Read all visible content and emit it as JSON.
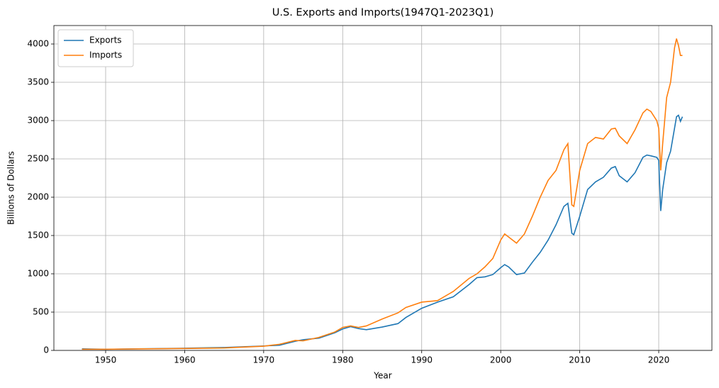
{
  "chart_data": {
    "type": "line",
    "title": "U.S. Exports and Imports(1947Q1-2023Q1)",
    "x_label": "Year",
    "y_label": "Billions of Dollars",
    "x": [
      1947,
      1950,
      1955,
      1960,
      1965,
      1970,
      1972,
      1974,
      1975,
      1977,
      1979,
      1980,
      1981,
      1982,
      1983,
      1985,
      1987,
      1988,
      1990,
      1992,
      1994,
      1996,
      1997,
      1998,
      1999,
      2000,
      2000.5,
      2001,
      2002,
      2003,
      2004,
      2005,
      2006,
      2007,
      2008,
      2008.5,
      2009,
      2009.25,
      2010,
      2011,
      2012,
      2013,
      2014,
      2014.5,
      2015,
      2016,
      2017,
      2018,
      2018.5,
      2019,
      2019.75,
      2020,
      2020.25,
      2020.5,
      2021,
      2021.5,
      2022,
      2022.25,
      2022.5,
      2022.75,
      2023
    ],
    "series": [
      {
        "name": "Exports",
        "color": "#1f77b4",
        "values": [
          20,
          15,
          22,
          28,
          38,
          58,
          68,
          120,
          140,
          160,
          230,
          280,
          310,
          285,
          270,
          305,
          350,
          430,
          550,
          630,
          700,
          860,
          950,
          960,
          990,
          1080,
          1120,
          1090,
          990,
          1010,
          1150,
          1280,
          1440,
          1640,
          1880,
          1920,
          1530,
          1510,
          1750,
          2100,
          2200,
          2260,
          2380,
          2400,
          2280,
          2200,
          2320,
          2520,
          2550,
          2540,
          2520,
          2480,
          1820,
          2100,
          2450,
          2600,
          2900,
          3050,
          3070,
          2990,
          3050
        ]
      },
      {
        "name": "Imports",
        "color": "#ff7f0e",
        "values": [
          15,
          15,
          20,
          25,
          32,
          55,
          80,
          130,
          125,
          170,
          240,
          300,
          320,
          300,
          320,
          410,
          490,
          560,
          630,
          650,
          770,
          940,
          1000,
          1090,
          1200,
          1440,
          1520,
          1480,
          1400,
          1520,
          1750,
          2000,
          2220,
          2350,
          2620,
          2700,
          1900,
          1880,
          2350,
          2700,
          2780,
          2760,
          2890,
          2900,
          2800,
          2700,
          2880,
          3100,
          3150,
          3120,
          3000,
          2900,
          2350,
          2700,
          3300,
          3500,
          3950,
          4070,
          3980,
          3850,
          3850
        ]
      }
    ],
    "xlim": [
      1943.45,
      2026.73
    ],
    "xticks": [
      1950,
      1960,
      1970,
      1980,
      1990,
      2000,
      2010,
      2020
    ],
    "ylim": [
      0,
      4241
    ],
    "yticks": [
      0,
      500,
      1000,
      1500,
      2000,
      2500,
      3000,
      3500,
      4000
    ],
    "grid": true,
    "legend": "upper left"
  }
}
